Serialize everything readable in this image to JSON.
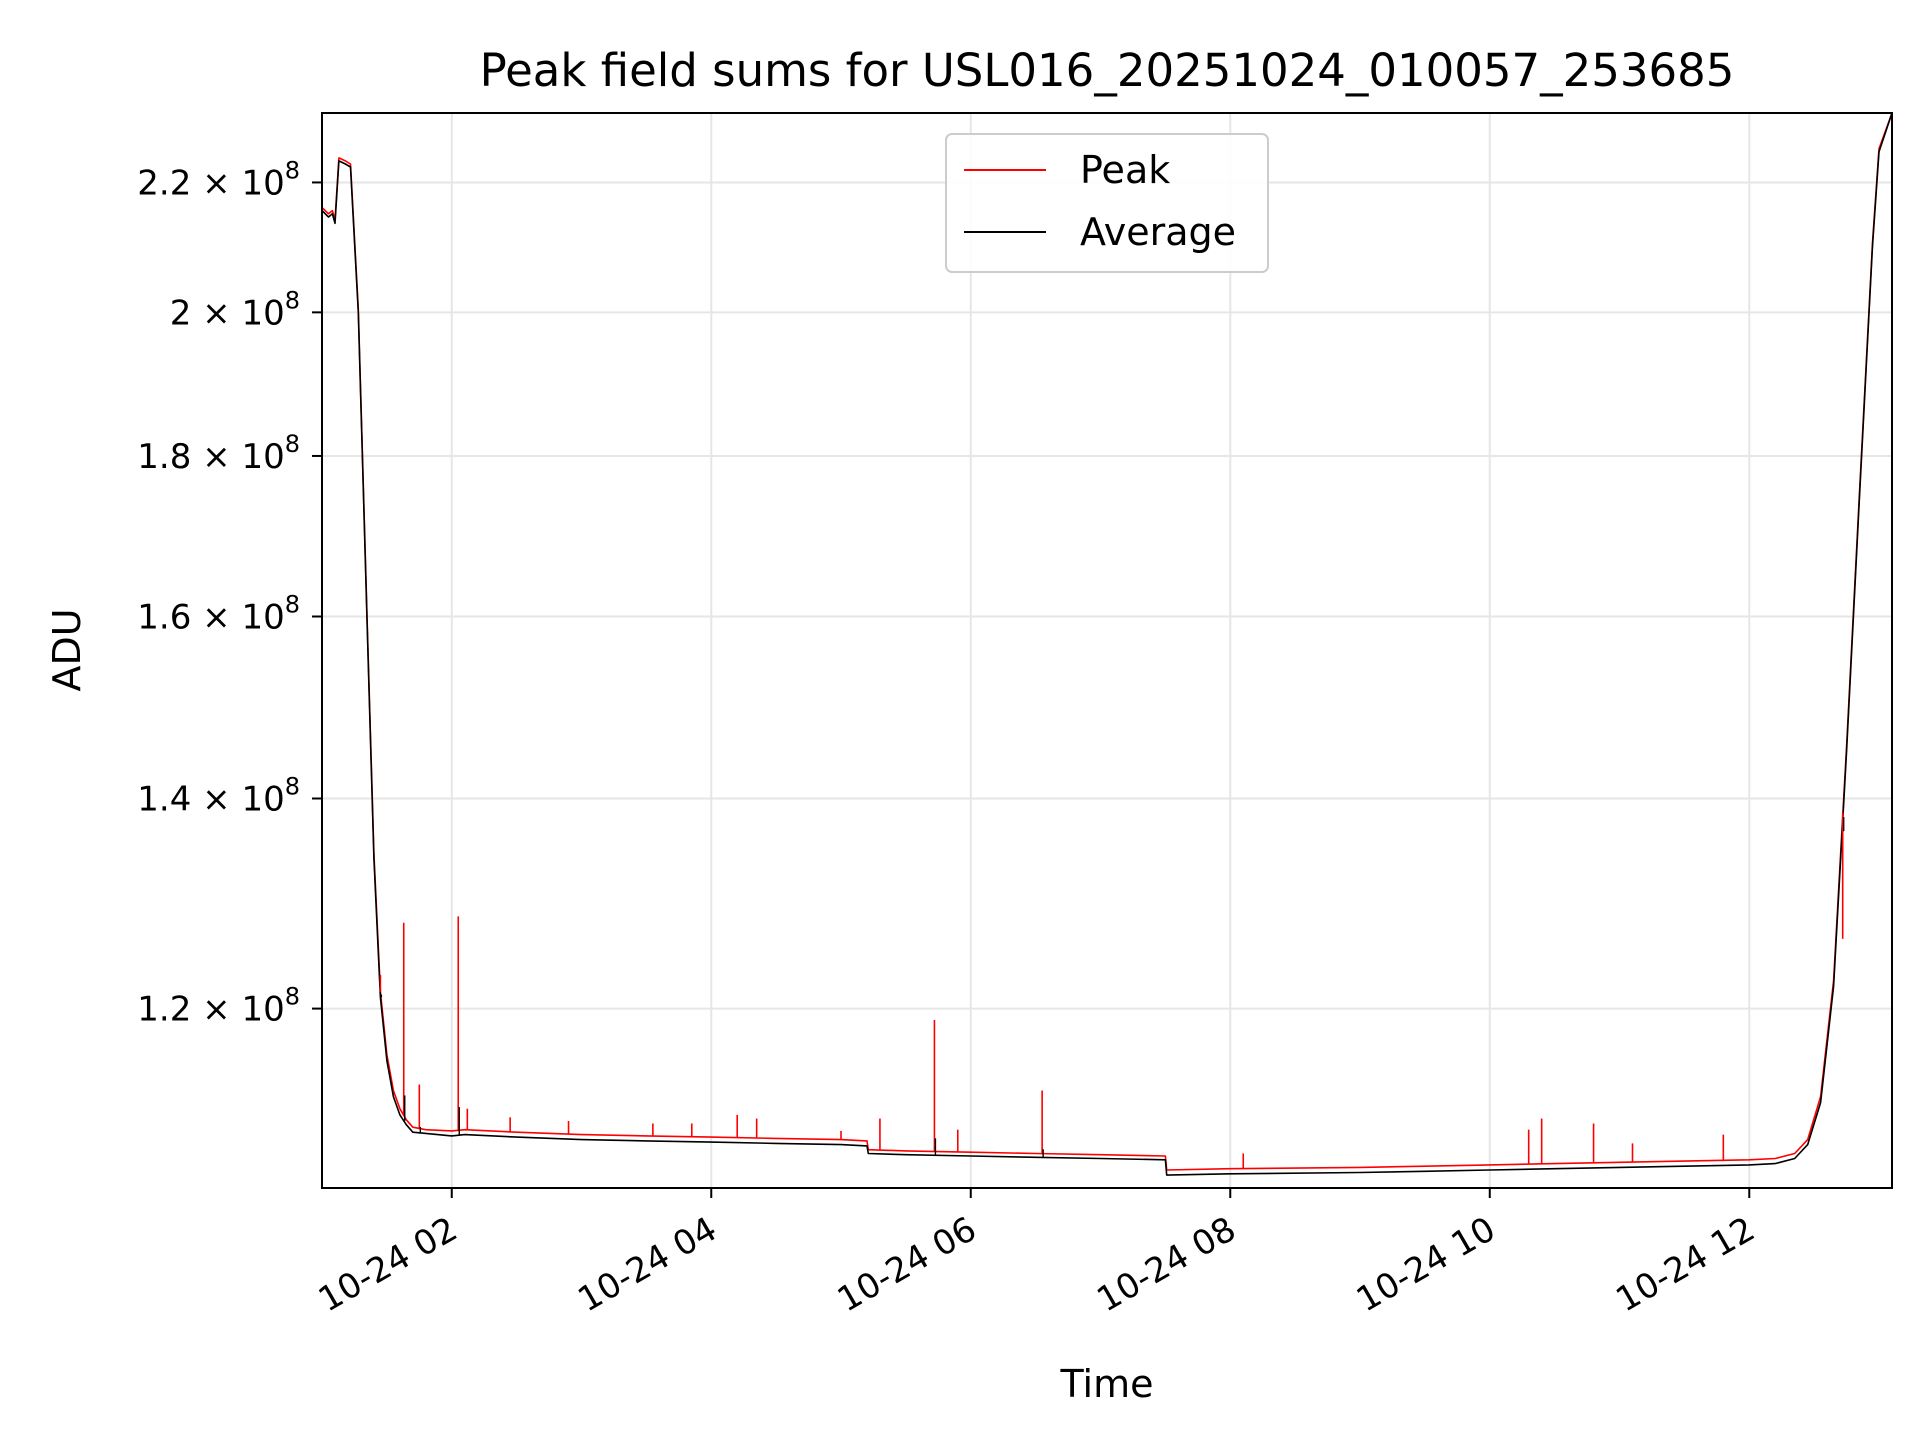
{
  "chart_data": {
    "type": "line",
    "title": "Peak field sums for USL016_20251024_010057_253685",
    "xlabel": "Time",
    "ylabel": "ADU",
    "yscale": "log",
    "xlim": [
      1.0,
      13.1
    ],
    "ylim": [
      105200000,
      231500000
    ],
    "grid": true,
    "legend_position": "top-center",
    "x_ticks": [
      {
        "value": 2,
        "label": "10-24 02"
      },
      {
        "value": 4,
        "label": "10-24 04"
      },
      {
        "value": 6,
        "label": "10-24 06"
      },
      {
        "value": 8,
        "label": "10-24 08"
      },
      {
        "value": 10,
        "label": "10-24 10"
      },
      {
        "value": 12,
        "label": "10-24 12"
      }
    ],
    "y_ticks": [
      {
        "value": 120000000,
        "base": "1.2 × 10",
        "exp": "8"
      },
      {
        "value": 140000000,
        "base": "1.4 × 10",
        "exp": "8"
      },
      {
        "value": 160000000,
        "base": "1.6 × 10",
        "exp": "8"
      },
      {
        "value": 180000000,
        "base": "1.8 × 10",
        "exp": "8"
      },
      {
        "value": 200000000,
        "base": "2 × 10",
        "exp": "8"
      },
      {
        "value": 220000000,
        "base": "2.2 × 10",
        "exp": "8"
      }
    ],
    "series": [
      {
        "name": "Average",
        "color": "#000000",
        "x": [
          1.0,
          1.05,
          1.08,
          1.1,
          1.13,
          1.18,
          1.22,
          1.28,
          1.35,
          1.4,
          1.45,
          1.5,
          1.55,
          1.6,
          1.65,
          1.7,
          1.8,
          2.0,
          2.1,
          2.5,
          3.0,
          3.5,
          4.0,
          4.5,
          5.0,
          5.2,
          5.21,
          5.5,
          6.0,
          6.5,
          7.0,
          7.5,
          7.51,
          8.0,
          9.0,
          9.5,
          10.0,
          10.5,
          11.0,
          11.5,
          12.0,
          12.2,
          12.35,
          12.45,
          12.55,
          12.65,
          12.75,
          12.85,
          12.95,
          13.0,
          13.1
        ],
        "y": [
          215500000,
          214500000,
          215000000,
          213500000,
          223500000,
          223000000,
          222500000,
          200000000,
          158000000,
          134000000,
          121000000,
          115500000,
          112500000,
          111000000,
          110200000,
          109600000,
          109500000,
          109300000,
          109400000,
          109200000,
          109000000,
          108900000,
          108800000,
          108700000,
          108600000,
          108500000,
          107900000,
          107800000,
          107700000,
          107600000,
          107500000,
          107400000,
          106200000,
          106300000,
          106400000,
          106500000,
          106600000,
          106700000,
          106800000,
          106900000,
          107000000,
          107100000,
          107500000,
          108600000,
          112000000,
          122000000,
          145000000,
          175000000,
          210000000,
          225000000,
          231500000
        ]
      },
      {
        "name": "Peak",
        "color": "#ff0000",
        "x": [
          1.0,
          1.05,
          1.08,
          1.1,
          1.13,
          1.18,
          1.22,
          1.28,
          1.35,
          1.4,
          1.45,
          1.5,
          1.55,
          1.6,
          1.65,
          1.7,
          1.8,
          2.0,
          2.1,
          2.5,
          3.0,
          3.5,
          4.0,
          4.5,
          5.0,
          5.2,
          5.21,
          5.5,
          6.0,
          6.5,
          7.0,
          7.5,
          7.51,
          8.0,
          9.0,
          9.5,
          10.0,
          10.5,
          11.0,
          11.5,
          12.0,
          12.2,
          12.35,
          12.45,
          12.55,
          12.65,
          12.75,
          12.85,
          12.95,
          13.0,
          13.1
        ],
        "y": [
          216000000,
          215000000,
          215500000,
          214000000,
          224000000,
          223500000,
          223000000,
          200500000,
          158500000,
          134500000,
          121500000,
          116000000,
          113000000,
          111500000,
          110600000,
          110000000,
          109800000,
          109700000,
          109800000,
          109600000,
          109400000,
          109300000,
          109200000,
          109100000,
          109000000,
          108900000,
          108200000,
          108100000,
          108000000,
          107900000,
          107800000,
          107700000,
          106600000,
          106700000,
          106800000,
          106900000,
          107000000,
          107100000,
          107200000,
          107300000,
          107400000,
          107500000,
          107900000,
          109000000,
          112500000,
          122500000,
          145500000,
          175500000,
          210500000,
          225500000,
          231500000
        ]
      }
    ],
    "peak_spikes": [
      {
        "x": 1.45,
        "y": 123000000
      },
      {
        "x": 1.63,
        "y": 127800000
      },
      {
        "x": 1.75,
        "y": 113500000
      },
      {
        "x": 2.05,
        "y": 128400000
      },
      {
        "x": 2.12,
        "y": 111500000
      },
      {
        "x": 2.45,
        "y": 110800000
      },
      {
        "x": 2.9,
        "y": 110500000
      },
      {
        "x": 3.55,
        "y": 110300000
      },
      {
        "x": 3.85,
        "y": 110300000
      },
      {
        "x": 4.2,
        "y": 111000000
      },
      {
        "x": 4.35,
        "y": 110700000
      },
      {
        "x": 5.0,
        "y": 109700000
      },
      {
        "x": 5.3,
        "y": 110700000
      },
      {
        "x": 5.72,
        "y": 119000000
      },
      {
        "x": 5.9,
        "y": 109800000
      },
      {
        "x": 6.55,
        "y": 113000000
      },
      {
        "x": 8.1,
        "y": 107900000
      },
      {
        "x": 10.3,
        "y": 109800000
      },
      {
        "x": 10.4,
        "y": 110700000
      },
      {
        "x": 10.8,
        "y": 110300000
      },
      {
        "x": 11.1,
        "y": 108700000
      },
      {
        "x": 11.8,
        "y": 109400000
      },
      {
        "x": 12.5,
        "y": 110800000
      },
      {
        "x": 12.72,
        "y": 126300000
      }
    ]
  },
  "legend": [
    {
      "label": "Peak",
      "color": "#ff0000"
    },
    {
      "label": "Average",
      "color": "#000000"
    }
  ]
}
